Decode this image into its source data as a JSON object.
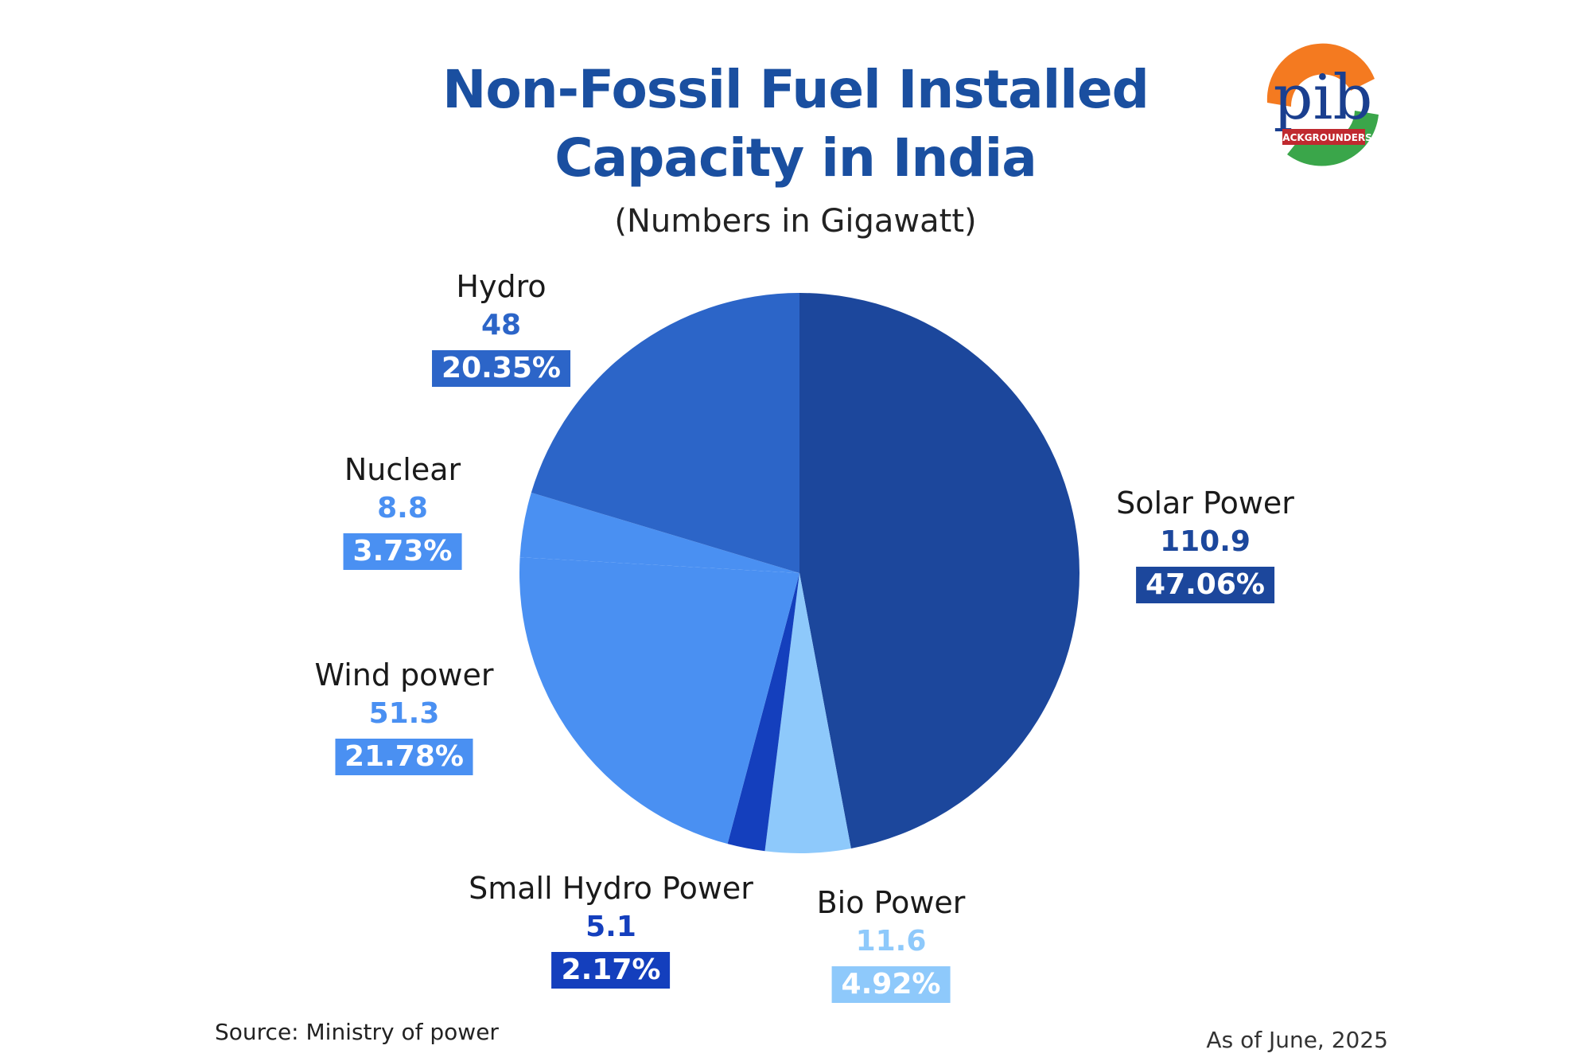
{
  "header": {
    "title_line1": "Non-Fossil Fuel Installed",
    "title_line2": "Capacity in India",
    "subtitle": "(Numbers in Gigawatt)"
  },
  "logo": {
    "text": "pib",
    "badge": "BACKGROUNDERS",
    "icon": "pib-logo-icon"
  },
  "footer": {
    "source": "Source: Ministry of power",
    "as_of": "As of June, 2025"
  },
  "chart_data": {
    "type": "pie",
    "title": "Non-Fossil Fuel Installed Capacity in India",
    "subtitle": "(Numbers in Gigawatt)",
    "unit": "Gigawatt",
    "slices": [
      {
        "label": "Solar Power",
        "value": 110.9,
        "percent": "47.06%",
        "color": "#1c479c"
      },
      {
        "label": "Bio Power",
        "value": 11.6,
        "percent": "4.92%",
        "color": "#8ec9fb"
      },
      {
        "label": "Small Hydro Power",
        "value": 5.1,
        "percent": "2.17%",
        "color": "#143fbd"
      },
      {
        "label": "Wind power",
        "value": 51.3,
        "percent": "21.78%",
        "color": "#4a90f2"
      },
      {
        "label": "Nuclear",
        "value": 8.8,
        "percent": "3.73%",
        "color": "#4a90f2"
      },
      {
        "label": "Hydro",
        "value": 48,
        "percent": "20.35%",
        "color": "#2c65c8"
      }
    ],
    "value_colors": {
      "Solar Power": "#1c479c",
      "Bio Power": "#8ec9fb",
      "Small Hydro Power": "#143fbd",
      "Wind power": "#4a90f2",
      "Nuclear": "#4a90f2",
      "Hydro": "#2c65c8"
    }
  }
}
